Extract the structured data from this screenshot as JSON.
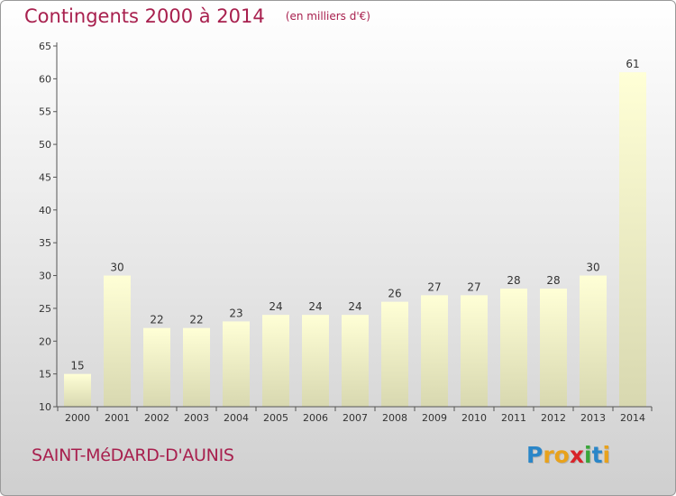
{
  "title": "Contingents 2000 à 2014",
  "subtitle": "(en milliers d'€)",
  "location": "SAINT-MéDARD-D'AUNIS",
  "logo": {
    "letters": [
      "P",
      "r",
      "o",
      "x",
      "i",
      "t",
      "i"
    ],
    "colors": [
      "#2a86c8",
      "#e8a21c",
      "#e8a21c",
      "#d8242a",
      "#3aa63a",
      "#2a86c8",
      "#e8a21c"
    ]
  },
  "colors": {
    "accent": "#a8204e",
    "bar_top": "#ffffd6",
    "bar_bottom": "#d8d8b0",
    "axis": "#333333"
  },
  "chart_data": {
    "type": "bar",
    "title": "Contingents 2000 à 2014",
    "subtitle": "(en milliers d'€)",
    "xlabel": "",
    "ylabel": "",
    "categories": [
      "2000",
      "2001",
      "2002",
      "2003",
      "2004",
      "2005",
      "2006",
      "2007",
      "2008",
      "2009",
      "2010",
      "2011",
      "2012",
      "2013",
      "2014"
    ],
    "values": [
      15,
      30,
      22,
      22,
      23,
      24,
      24,
      24,
      26,
      27,
      27,
      28,
      28,
      30,
      61
    ],
    "ylim": [
      10,
      65
    ],
    "yticks": [
      10,
      15,
      20,
      25,
      30,
      35,
      40,
      45,
      50,
      55,
      60,
      65
    ],
    "grid": false,
    "legend": "none"
  }
}
